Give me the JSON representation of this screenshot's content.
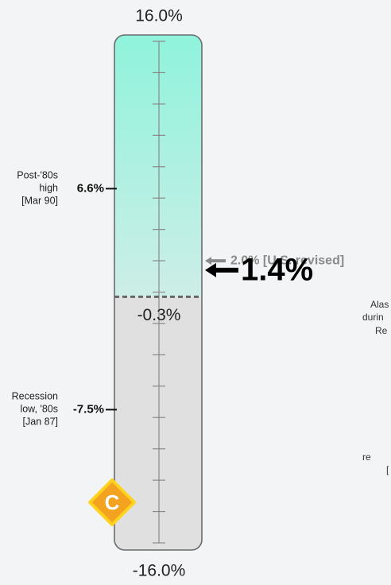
{
  "chart_data": {
    "type": "gauge",
    "ylim": [
      -16,
      16
    ],
    "ylim_labels": [
      "-16.0%",
      "16.0%"
    ],
    "yticks": [
      16,
      14,
      12,
      10,
      8,
      6,
      4,
      2,
      0,
      -2,
      -4,
      -6,
      -8,
      -10,
      -12,
      -14,
      -16
    ],
    "split": {
      "value": -0.3,
      "label": "-0.3%"
    },
    "colors": {
      "above": "#8ff3dc",
      "above_end": "#cdeee7",
      "below": "#e0e0e0",
      "current": "#000000",
      "comparison": "#8a8a8a"
    },
    "markers": [
      {
        "value": 6.6,
        "label": "6.6%",
        "note": [
          "Post-'80s",
          "high",
          "[Mar 90]"
        ]
      },
      {
        "value": -7.5,
        "label": "-7.5%",
        "note": [
          "Recession",
          "low, '80s",
          "[Jan 87]"
        ]
      }
    ],
    "current": {
      "value": 1.4,
      "label": "1.4%"
    },
    "comparison": {
      "value": 2.0,
      "label": "2.0% [U.S. revised]"
    },
    "grade": "C",
    "background_text": [
      "Alas",
      "durin",
      "Re",
      "re",
      "["
    ]
  }
}
